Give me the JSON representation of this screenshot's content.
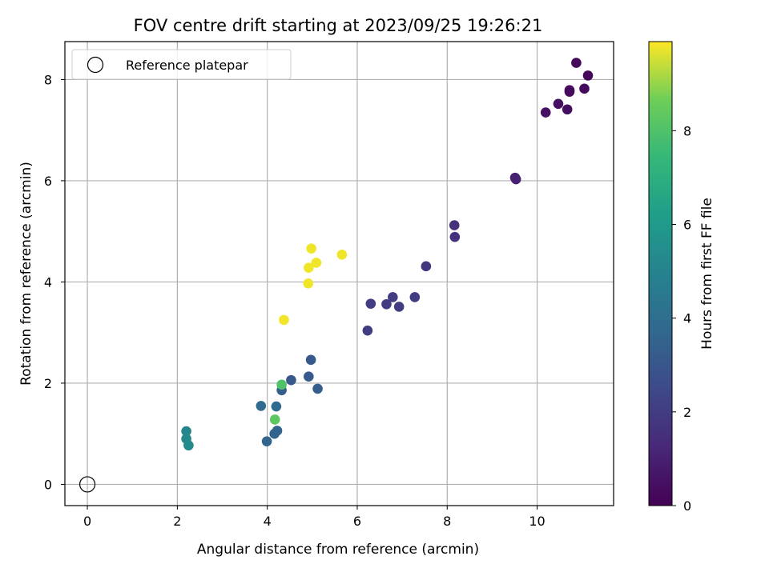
{
  "chart_data": {
    "type": "scatter",
    "title": "FOV centre drift starting at 2023/09/25 19:26:21",
    "xlabel": "Angular distance from reference (arcmin)",
    "ylabel": "Rotation from reference (arcmin)",
    "xlim": [
      -0.5,
      11.7
    ],
    "ylim": [
      -0.42,
      8.75
    ],
    "xticks": [
      0,
      2,
      4,
      6,
      8,
      10
    ],
    "yticks": [
      0,
      2,
      4,
      6,
      8
    ],
    "grid": true,
    "legend": {
      "position": "top-left",
      "entries": [
        "Reference platepar"
      ]
    },
    "reference_point": {
      "x": 0,
      "y": 0,
      "label": "Reference platepar"
    },
    "colorbar": {
      "label": "Hours from first FF file",
      "range": [
        0,
        9.9
      ],
      "ticks": [
        0,
        2,
        4,
        6,
        8
      ],
      "colormap": "viridis"
    },
    "points": [
      {
        "x": 10.87,
        "y": 8.33,
        "hours": 0.2
      },
      {
        "x": 11.13,
        "y": 8.08,
        "hours": 0.2
      },
      {
        "x": 11.05,
        "y": 7.82,
        "hours": 0.3
      },
      {
        "x": 10.72,
        "y": 7.79,
        "hours": 0.3
      },
      {
        "x": 10.72,
        "y": 7.76,
        "hours": 0.3
      },
      {
        "x": 10.47,
        "y": 7.52,
        "hours": 0.4
      },
      {
        "x": 10.67,
        "y": 7.41,
        "hours": 0.4
      },
      {
        "x": 10.19,
        "y": 7.35,
        "hours": 0.5
      },
      {
        "x": 9.51,
        "y": 6.06,
        "hours": 1.0
      },
      {
        "x": 9.53,
        "y": 6.03,
        "hours": 1.0
      },
      {
        "x": 8.16,
        "y": 5.12,
        "hours": 1.6
      },
      {
        "x": 8.17,
        "y": 4.89,
        "hours": 1.6
      },
      {
        "x": 7.53,
        "y": 4.31,
        "hours": 1.8
      },
      {
        "x": 6.79,
        "y": 3.7,
        "hours": 2.0
      },
      {
        "x": 6.65,
        "y": 3.56,
        "hours": 2.0
      },
      {
        "x": 6.3,
        "y": 3.57,
        "hours": 2.0
      },
      {
        "x": 6.93,
        "y": 3.51,
        "hours": 2.0
      },
      {
        "x": 7.28,
        "y": 3.7,
        "hours": 2.0
      },
      {
        "x": 6.23,
        "y": 3.04,
        "hours": 2.0
      },
      {
        "x": 4.97,
        "y": 2.46,
        "hours": 3.1
      },
      {
        "x": 4.53,
        "y": 2.06,
        "hours": 3.1
      },
      {
        "x": 4.92,
        "y": 2.13,
        "hours": 3.2
      },
      {
        "x": 5.12,
        "y": 1.89,
        "hours": 3.3
      },
      {
        "x": 4.32,
        "y": 1.86,
        "hours": 3.3
      },
      {
        "x": 3.86,
        "y": 1.55,
        "hours": 3.8
      },
      {
        "x": 4.2,
        "y": 1.54,
        "hours": 3.8
      },
      {
        "x": 4.16,
        "y": 1.0,
        "hours": 3.6
      },
      {
        "x": 4.22,
        "y": 1.06,
        "hours": 3.6
      },
      {
        "x": 3.99,
        "y": 0.85,
        "hours": 3.6
      },
      {
        "x": 2.2,
        "y": 1.05,
        "hours": 5.1
      },
      {
        "x": 2.2,
        "y": 0.9,
        "hours": 5.2
      },
      {
        "x": 2.25,
        "y": 0.77,
        "hours": 5.3
      },
      {
        "x": 4.32,
        "y": 1.97,
        "hours": 8.0
      },
      {
        "x": 4.17,
        "y": 1.28,
        "hours": 8.3
      },
      {
        "x": 4.98,
        "y": 4.66,
        "hours": 9.8
      },
      {
        "x": 5.66,
        "y": 4.54,
        "hours": 9.8
      },
      {
        "x": 5.09,
        "y": 4.38,
        "hours": 9.8
      },
      {
        "x": 4.92,
        "y": 4.28,
        "hours": 9.8
      },
      {
        "x": 4.91,
        "y": 3.97,
        "hours": 9.8
      },
      {
        "x": 4.37,
        "y": 3.25,
        "hours": 9.8
      }
    ]
  }
}
